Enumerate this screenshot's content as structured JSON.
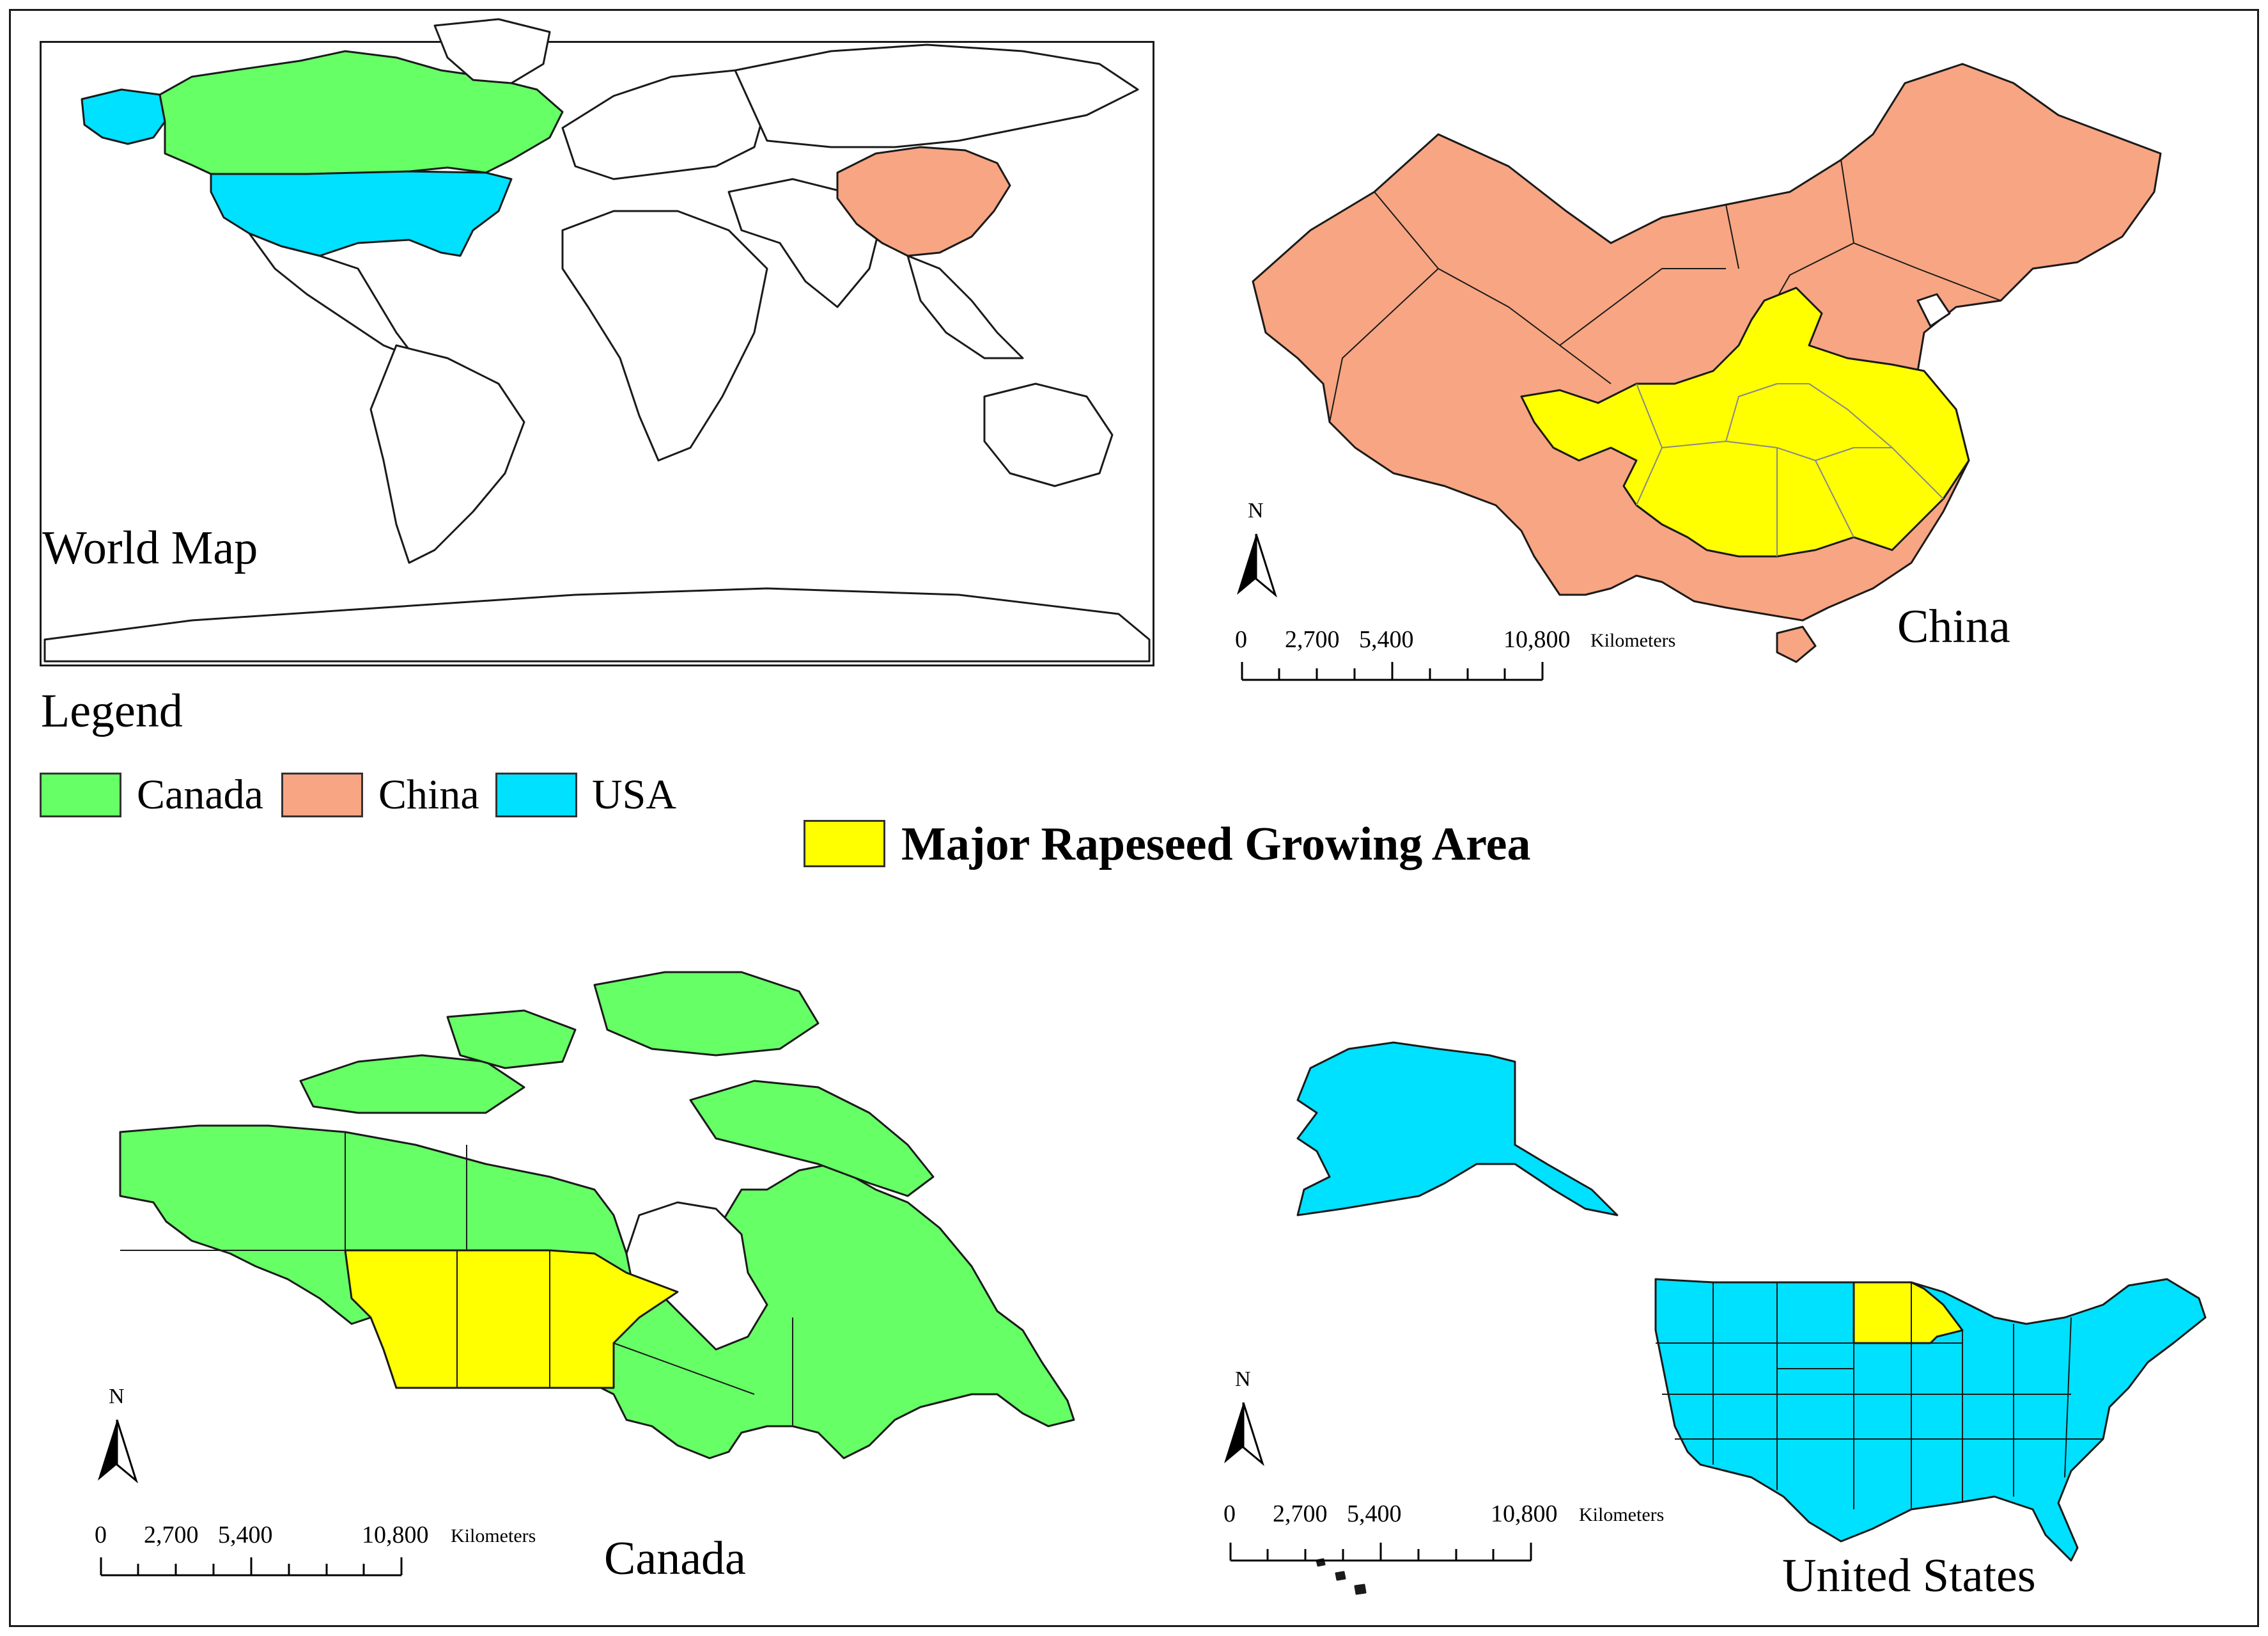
{
  "colors": {
    "canada": "#66ff66",
    "china": "#f7a582",
    "usa": "#00e0ff",
    "rapeseed": "#ffff00",
    "border": "#1a1a1a"
  },
  "panels": {
    "world": {
      "title": "World Map"
    },
    "china": {
      "title": "China"
    },
    "canada": {
      "title": "Canada"
    },
    "usa": {
      "title": "United States"
    }
  },
  "legend": {
    "title": "Legend",
    "items": [
      {
        "label": "Canada",
        "color": "#66ff66"
      },
      {
        "label": "China",
        "color": "#f7a582"
      },
      {
        "label": "USA",
        "color": "#00e0ff"
      }
    ],
    "major": {
      "label": "Major Rapeseed Growing Area",
      "color": "#ffff00"
    }
  },
  "scale_bar": {
    "ticks": [
      "0",
      "2,700",
      "5,400",
      "10,800"
    ],
    "unit": "Kilometers"
  },
  "north_arrow": {
    "label": "N"
  }
}
